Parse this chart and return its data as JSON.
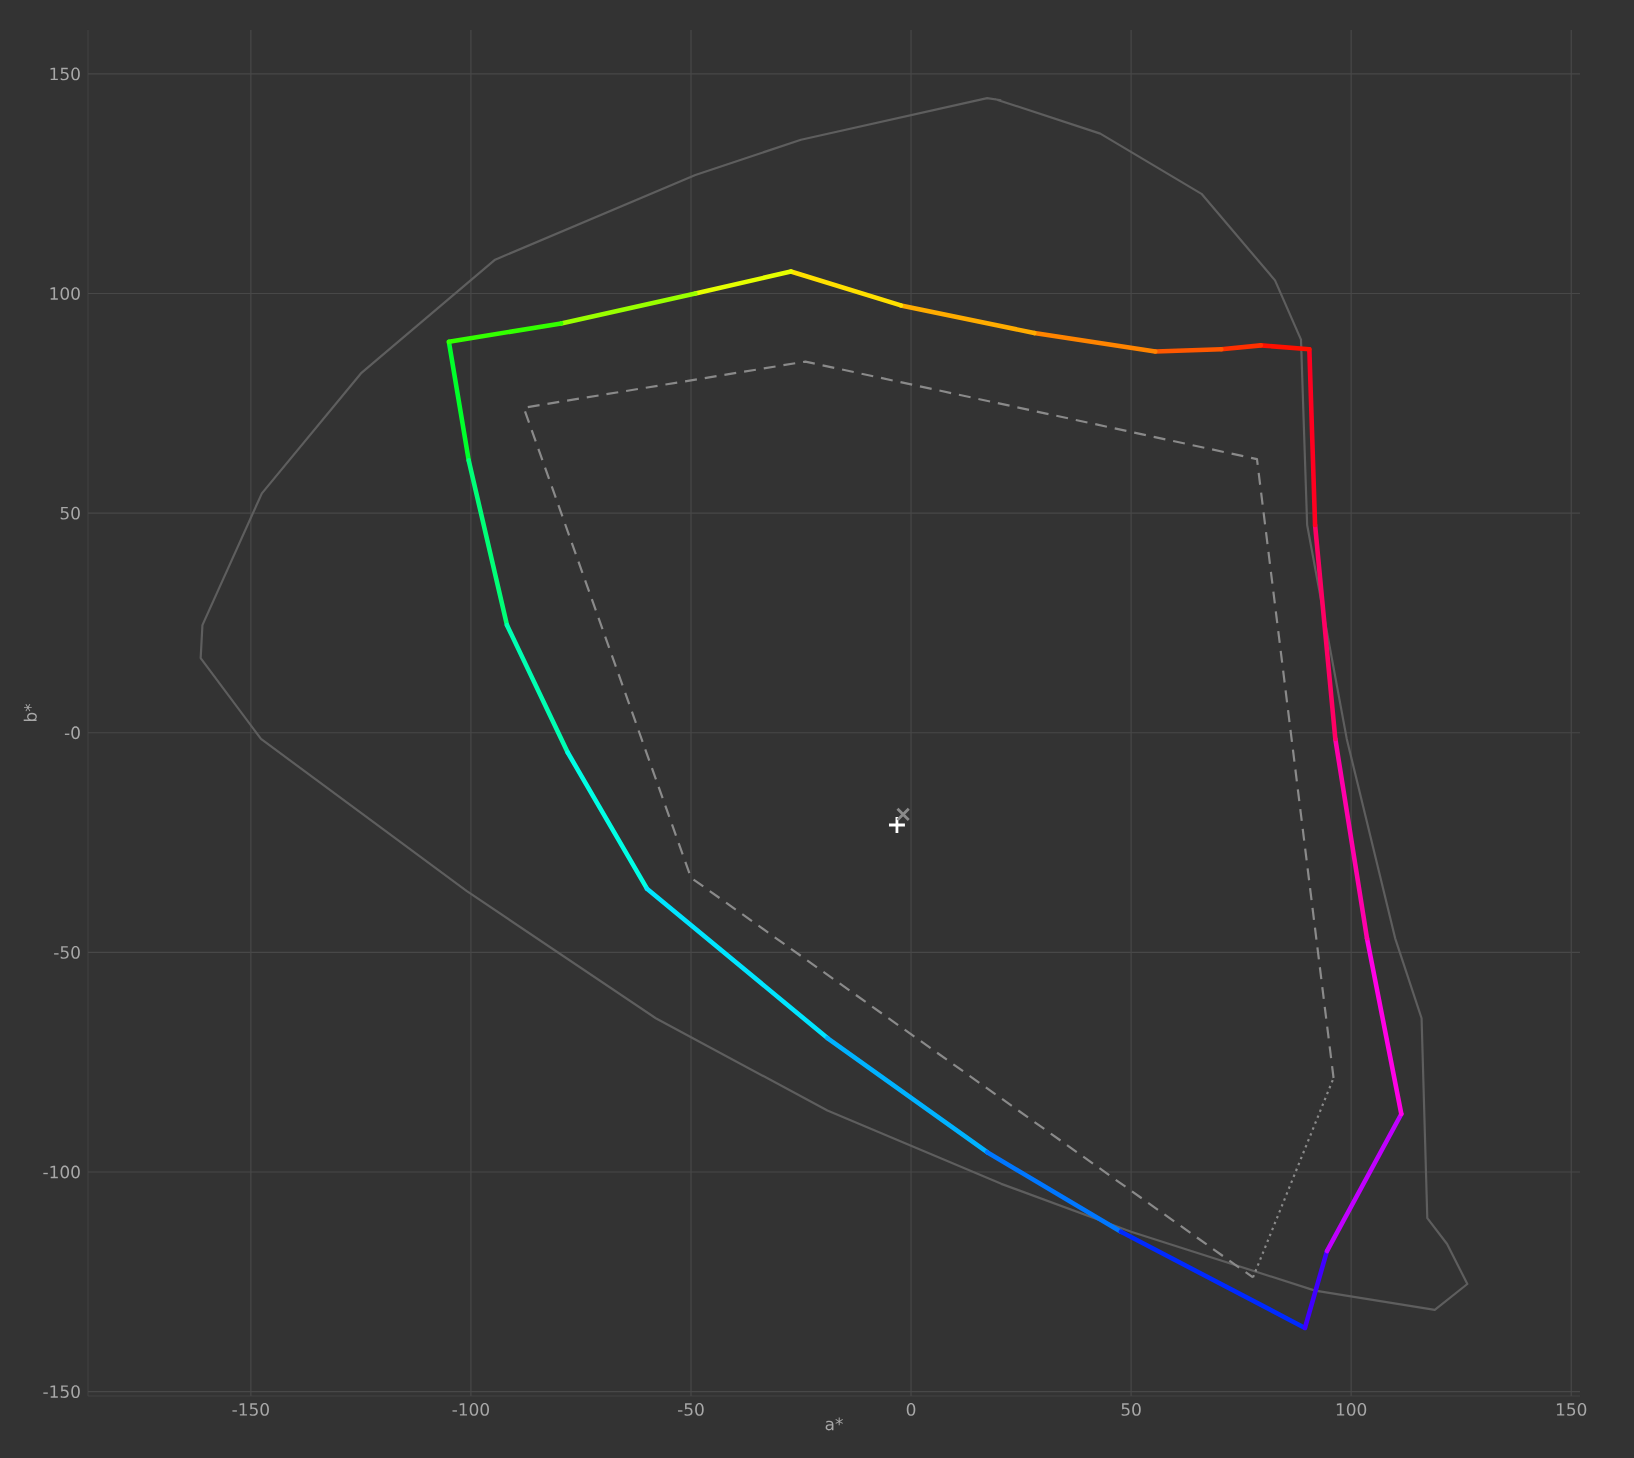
{
  "chart_data": {
    "type": "line",
    "xlabel": "a*",
    "ylabel": "b*",
    "xlim": [
      -187,
      152
    ],
    "ylim": [
      -151,
      160
    ],
    "xticks": [
      -150,
      -100,
      -50,
      0,
      50,
      100,
      150
    ],
    "yticks": [
      -150,
      -100,
      -50,
      {
        "value": 0,
        "label": "-0"
      },
      50,
      100,
      150
    ],
    "grid": true,
    "series": [
      {
        "color": "#5e5e5e",
        "line_style": "solid",
        "x": [
          19,
          43,
          66,
          82.7,
          88.6,
          90,
          99,
          110,
          116,
          117.3,
          121.8,
          126.4,
          119,
          91.8,
          50,
          20.5,
          -19,
          -58,
          -101,
          -147.7,
          -161.4,
          -161,
          -147.5,
          -125,
          -94.5,
          -49,
          -25,
          17.3,
          20.5
        ],
        "values": [
          144.3,
          136.4,
          122.7,
          103,
          89.5,
          47.3,
          -1.4,
          -46.8,
          -65,
          -110.5,
          -116.4,
          -125.5,
          -131.4,
          -127,
          -113.6,
          -102.7,
          -86,
          -65,
          -36,
          -1.4,
          17,
          24.5,
          54.5,
          81.8,
          107.7,
          127,
          135,
          144.5,
          144
        ]
      },
      {
        "color": "#8a8a8a",
        "line_style": "dashed",
        "x": [
          96,
          78.6,
          -24,
          -88,
          -50,
          77.7
        ],
        "values": [
          -78.6,
          62.3,
          84.5,
          74,
          -33,
          -124
        ]
      },
      {
        "color": "#8a8a8a",
        "line_style": "dotted",
        "x": [
          77.7,
          96
        ],
        "values": [
          -124,
          -78.6
        ]
      },
      {
        "color": "#00ff2a",
        "x": [
          -105,
          -100.5
        ],
        "values": [
          89,
          62
        ]
      },
      {
        "color": "#00ff77",
        "x": [
          -100.5,
          -91.8
        ],
        "values": [
          62,
          24.5
        ]
      },
      {
        "color": "#00ffb2",
        "x": [
          -91.8,
          -78
        ],
        "values": [
          24.5,
          -4.5
        ]
      },
      {
        "color": "#00ffe5",
        "x": [
          -78,
          -60
        ],
        "values": [
          -4.5,
          -35.5
        ]
      },
      {
        "color": "#00e5ff",
        "x": [
          -60,
          -19
        ],
        "values": [
          -35.5,
          -69.5
        ]
      },
      {
        "color": "#00b2ff",
        "x": [
          -19,
          17.3
        ],
        "values": [
          -69.5,
          -95.5
        ]
      },
      {
        "color": "#0077ff",
        "x": [
          17.3,
          47.7
        ],
        "values": [
          -95.5,
          -113.6
        ]
      },
      {
        "color": "#002aff",
        "x": [
          47.7,
          89.5
        ],
        "values": [
          -113.6,
          -135.5
        ]
      },
      {
        "color": "#4000ff",
        "x": [
          89.5,
          94.5
        ],
        "values": [
          -135.5,
          -118
        ]
      },
      {
        "color": "#c000ff",
        "x": [
          94.5,
          111.4
        ],
        "values": [
          -118,
          -86.8
        ]
      },
      {
        "color": "#ff00e5",
        "x": [
          111.4,
          103.6
        ],
        "values": [
          -86.8,
          -46.8
        ]
      },
      {
        "color": "#ff00aa",
        "x": [
          103.6,
          96.4
        ],
        "values": [
          -46.8,
          -1.4
        ]
      },
      {
        "color": "#ff0064",
        "x": [
          96.4,
          91.8
        ],
        "values": [
          -1.4,
          47.3
        ]
      },
      {
        "color": "#ff0020",
        "x": [
          91.8,
          90.5
        ],
        "values": [
          47.3,
          87.3
        ]
      },
      {
        "color": "#ff1000",
        "x": [
          90.5,
          79.5
        ],
        "values": [
          87.3,
          88.2
        ]
      },
      {
        "color": "#ff3000",
        "x": [
          79.5,
          70.5
        ],
        "values": [
          88.2,
          87.3
        ]
      },
      {
        "color": "#ff5800",
        "x": [
          70.5,
          55.5
        ],
        "values": [
          87.3,
          86.8
        ]
      },
      {
        "color": "#ff8400",
        "x": [
          55.5,
          28
        ],
        "values": [
          86.8,
          91
        ]
      },
      {
        "color": "#ffac00",
        "x": [
          28,
          -2.3
        ],
        "values": [
          91,
          97.3
        ]
      },
      {
        "color": "#ffe000",
        "x": [
          -2.3,
          -27.3
        ],
        "values": [
          97.3,
          105
        ]
      },
      {
        "color": "#e5ff00",
        "x": [
          -27.3,
          -49
        ],
        "values": [
          105,
          100
        ]
      },
      {
        "color": "#99ff00",
        "x": [
          -49,
          -79.5
        ],
        "values": [
          100,
          93.2
        ]
      },
      {
        "color": "#33ff00",
        "x": [
          -79.5,
          -105
        ],
        "values": [
          93.2,
          89
        ]
      },
      {
        "type": "scatter",
        "marker": "plus",
        "color": "#ffffff",
        "x": [
          -3.2
        ],
        "values": [
          -21
        ]
      },
      {
        "type": "scatter",
        "marker": "cross",
        "color": "#8a8a8a",
        "x": [
          -1.8
        ],
        "values": [
          -18.6
        ]
      }
    ]
  }
}
